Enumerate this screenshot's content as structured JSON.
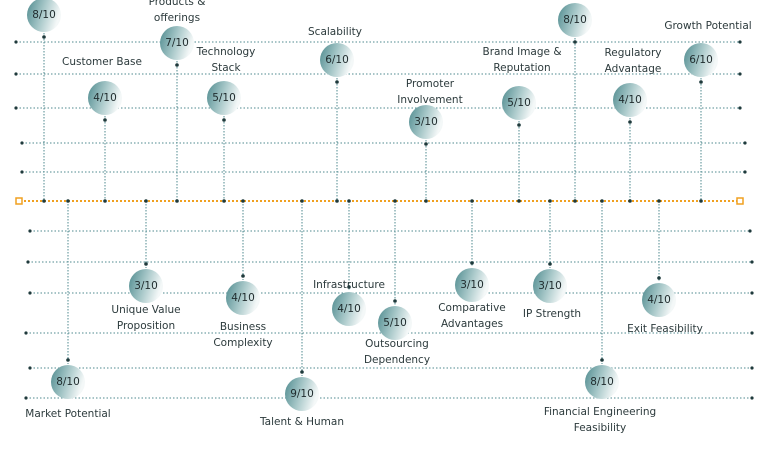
{
  "nodes": [
    {
      "label": [],
      "score": "8/10"
    },
    {
      "label": [
        "Products &",
        "offerings"
      ],
      "score": "7/10"
    },
    {
      "label": [
        "Customer Base"
      ],
      "score": "4/10"
    },
    {
      "label": [
        "Technology",
        "Stack"
      ],
      "score": "5/10"
    },
    {
      "label": [
        "Scalability"
      ],
      "score": "6/10"
    },
    {
      "label": [
        "Promoter",
        "Involvement"
      ],
      "score": "3/10"
    },
    {
      "label": [
        "Brand Image &",
        "Reputation"
      ],
      "score": "5/10"
    },
    {
      "label": [],
      "score": "8/10"
    },
    {
      "label": [
        "Regulatory",
        "Advantage"
      ],
      "score": "4/10"
    },
    {
      "label": [
        "Growth Potential"
      ],
      "score": "6/10"
    },
    {
      "label": [
        "Market Potential"
      ],
      "score": "8/10"
    },
    {
      "label": [
        "Unique Value",
        "Proposition"
      ],
      "score": "3/10"
    },
    {
      "label": [
        "Business",
        "Complexity"
      ],
      "score": "4/10"
    },
    {
      "label": [
        "Talent & Human"
      ],
      "score": "9/10"
    },
    {
      "label": [
        "Infrastructure"
      ],
      "score": "4/10"
    },
    {
      "label": [
        "Outsourcing",
        "Dependency"
      ],
      "score": "5/10"
    },
    {
      "label": [
        "Comparative",
        "Advantages"
      ],
      "score": "3/10"
    },
    {
      "label": [
        "IP Strength"
      ],
      "score": "3/10"
    },
    {
      "label": [
        "Exit Feasibility"
      ],
      "score": "4/10"
    },
    {
      "label": [
        "Financial Engineering",
        "Feasibility"
      ],
      "score": "8/10"
    }
  ]
}
